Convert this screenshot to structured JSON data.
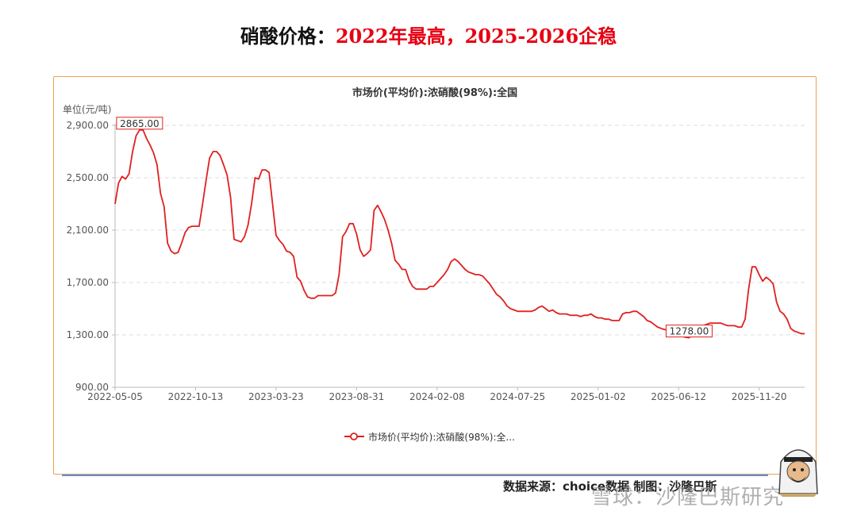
{
  "page": {
    "title_prefix": "硝酸价格：",
    "title_highlight": "2022年最高，2025-2026企稳",
    "source_text": "数据来源：choice数据 制图：沙隆巴斯",
    "watermark_text": "雪球：沙隆巴斯研究",
    "colors": {
      "title_red": "#e60012",
      "line": "#e02020",
      "frame": "#f0a050",
      "rule": "#5b8fd6"
    }
  },
  "chart_data": {
    "type": "line",
    "title": "市场价(平均价):浓硝酸(98%):全国",
    "ylabel": "单位(元/吨)",
    "ylim": [
      900,
      2900
    ],
    "yticks": [
      900,
      1300,
      1700,
      2100,
      2500,
      2900
    ],
    "ytick_labels": [
      "900.00",
      "1,300.00",
      "1,700.00",
      "2,100.00",
      "2,500.00",
      "2,900.00"
    ],
    "xtick_labels": [
      "2022-05-05",
      "2022-10-13",
      "2023-03-23",
      "2023-08-31",
      "2024-02-08",
      "2024-07-25",
      "2025-01-02",
      "2025-06-12",
      "2025-11-20"
    ],
    "xtick_index": [
      0,
      23,
      46,
      69,
      92,
      115,
      138,
      161,
      184
    ],
    "legend_label": "市场价(平均价):浓硝酸(98%):全...",
    "legend_position": "bottom",
    "grid": true,
    "series": [
      {
        "name": "市场价(平均价):浓硝酸(98%):全国",
        "color": "#e02020",
        "values": [
          2300,
          2460,
          2510,
          2490,
          2530,
          2700,
          2820,
          2865,
          2865,
          2800,
          2750,
          2690,
          2600,
          2380,
          2280,
          2000,
          1940,
          1920,
          1930,
          2000,
          2080,
          2120,
          2130,
          2130,
          2130,
          2300,
          2480,
          2650,
          2700,
          2700,
          2670,
          2600,
          2520,
          2350,
          2030,
          2020,
          2010,
          2050,
          2140,
          2300,
          2500,
          2490,
          2560,
          2560,
          2540,
          2300,
          2060,
          2020,
          1990,
          1940,
          1930,
          1900,
          1740,
          1710,
          1640,
          1590,
          1580,
          1580,
          1600,
          1600,
          1600,
          1600,
          1600,
          1620,
          1760,
          2050,
          2090,
          2150,
          2150,
          2070,
          1950,
          1900,
          1920,
          1950,
          2250,
          2290,
          2240,
          2180,
          2100,
          2000,
          1870,
          1840,
          1800,
          1800,
          1720,
          1670,
          1650,
          1650,
          1650,
          1650,
          1670,
          1670,
          1700,
          1730,
          1760,
          1800,
          1860,
          1880,
          1860,
          1830,
          1800,
          1780,
          1770,
          1760,
          1760,
          1750,
          1720,
          1690,
          1650,
          1610,
          1590,
          1560,
          1520,
          1500,
          1490,
          1480,
          1480,
          1480,
          1480,
          1480,
          1490,
          1510,
          1520,
          1500,
          1480,
          1490,
          1470,
          1460,
          1460,
          1460,
          1450,
          1450,
          1450,
          1440,
          1450,
          1450,
          1460,
          1440,
          1430,
          1430,
          1420,
          1420,
          1410,
          1410,
          1410,
          1460,
          1470,
          1470,
          1480,
          1480,
          1460,
          1440,
          1410,
          1400,
          1380,
          1360,
          1350,
          1340,
          1340,
          1330,
          1320,
          1300,
          1290,
          1282,
          1278,
          1300,
          1320,
          1350,
          1370,
          1380,
          1390,
          1390,
          1390,
          1390,
          1380,
          1370,
          1370,
          1370,
          1360,
          1360,
          1420,
          1650,
          1820,
          1820,
          1760,
          1710,
          1740,
          1720,
          1690,
          1550,
          1480,
          1460,
          1420,
          1350,
          1330,
          1320,
          1310,
          1310
        ],
        "annotations": [
          {
            "index": 7,
            "label": "2865.00"
          },
          {
            "index": 164,
            "label": "1278.00"
          }
        ]
      }
    ]
  }
}
